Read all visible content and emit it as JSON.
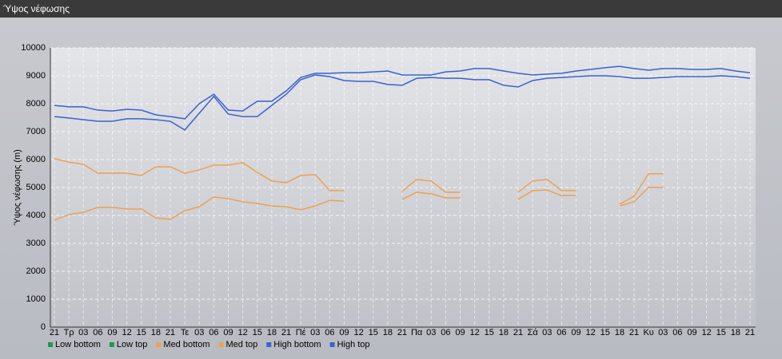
{
  "chart_data": {
    "type": "line",
    "title": "Ύψος νέφωσης",
    "y_label": "Ύψος νέφωσης (m)",
    "categories": [
      "21",
      "Τρ",
      "03",
      "06",
      "09",
      "12",
      "15",
      "18",
      "21",
      "Τε",
      "03",
      "06",
      "09",
      "12",
      "15",
      "18",
      "21",
      "Πέ",
      "03",
      "06",
      "09",
      "12",
      "15",
      "18",
      "21",
      "Πα",
      "03",
      "06",
      "09",
      "12",
      "15",
      "18",
      "21",
      "Σά",
      "03",
      "06",
      "09",
      "12",
      "15",
      "18",
      "21",
      "Κυ",
      "03",
      "06",
      "09",
      "12",
      "15",
      "18",
      "21"
    ],
    "ylim": [
      0,
      10000
    ],
    "yticks": [
      0,
      1000,
      2000,
      3000,
      4000,
      5000,
      6000,
      7000,
      8000,
      9000,
      10000
    ],
    "grid": true,
    "series": [
      {
        "name": "Low bottom",
        "color": "#1e9a4c",
        "values": [
          null,
          null,
          null,
          null,
          null,
          null,
          null,
          null,
          null,
          null,
          null,
          null,
          null,
          null,
          null,
          null,
          null,
          null,
          null,
          null,
          null,
          null,
          null,
          null,
          null,
          null,
          null,
          null,
          null,
          null,
          null,
          null,
          null,
          null,
          null,
          null,
          null,
          null,
          null,
          null,
          null,
          null,
          null,
          null,
          null,
          null,
          null,
          null,
          null
        ]
      },
      {
        "name": "Low top",
        "color": "#1e9a4c",
        "values": [
          null,
          null,
          null,
          null,
          null,
          null,
          null,
          null,
          null,
          null,
          null,
          null,
          null,
          null,
          null,
          null,
          null,
          null,
          null,
          null,
          null,
          null,
          null,
          null,
          null,
          null,
          null,
          null,
          null,
          null,
          null,
          null,
          null,
          null,
          null,
          null,
          null,
          null,
          null,
          null,
          null,
          null,
          null,
          null,
          null,
          null,
          null,
          null,
          null
        ]
      },
      {
        "name": "Med bottom",
        "color": "#f0a050",
        "values": [
          3830,
          4030,
          4110,
          4290,
          4290,
          4230,
          4230,
          3910,
          3860,
          4170,
          4310,
          4660,
          4600,
          4490,
          4430,
          4340,
          4310,
          4200,
          4340,
          4540,
          4510,
          null,
          null,
          null,
          4570,
          4830,
          4770,
          4630,
          4630,
          null,
          null,
          null,
          4570,
          4890,
          4910,
          4710,
          4710,
          null,
          null,
          4340,
          4490,
          5000,
          5000,
          null,
          null,
          null,
          null,
          null,
          null
        ]
      },
      {
        "name": "Med top",
        "color": "#f0a050",
        "values": [
          6030,
          5910,
          5830,
          5510,
          5510,
          5510,
          5430,
          5740,
          5740,
          5510,
          5630,
          5800,
          5800,
          5890,
          5540,
          5230,
          5170,
          5430,
          5460,
          4890,
          4890,
          null,
          null,
          null,
          4860,
          5290,
          5230,
          4830,
          4830,
          null,
          null,
          null,
          4830,
          5230,
          5290,
          4890,
          4890,
          null,
          null,
          4400,
          4690,
          5490,
          5490,
          null,
          null,
          null,
          null,
          null,
          null
        ]
      },
      {
        "name": "High bottom",
        "color": "#3a62d0",
        "values": [
          7540,
          7490,
          7430,
          7370,
          7370,
          7460,
          7460,
          7430,
          7370,
          7060,
          7660,
          8260,
          7630,
          7540,
          7540,
          7940,
          8340,
          8860,
          9030,
          8970,
          8830,
          8800,
          8800,
          8690,
          8660,
          8910,
          8940,
          8910,
          8910,
          8860,
          8860,
          8660,
          8600,
          8830,
          8910,
          8940,
          8970,
          9000,
          9000,
          8970,
          8910,
          8910,
          8940,
          8970,
          8970,
          8970,
          9000,
          8970,
          8910
        ]
      },
      {
        "name": "High top",
        "color": "#3a62d0",
        "values": [
          7940,
          7890,
          7890,
          7770,
          7740,
          7800,
          7770,
          7600,
          7540,
          7460,
          8000,
          8340,
          7770,
          7740,
          8090,
          8090,
          8460,
          8940,
          9090,
          9090,
          9110,
          9110,
          9140,
          9170,
          9030,
          9030,
          9030,
          9140,
          9170,
          9260,
          9260,
          9170,
          9090,
          9030,
          9060,
          9090,
          9170,
          9230,
          9290,
          9340,
          9260,
          9200,
          9260,
          9260,
          9230,
          9230,
          9260,
          9170,
          9110
        ]
      }
    ]
  }
}
